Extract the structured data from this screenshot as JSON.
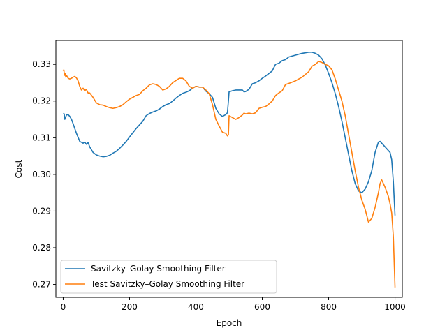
{
  "chart_data": {
    "type": "line",
    "title": "",
    "xlabel": "Epoch",
    "ylabel": "Cost",
    "xlim": [
      -22,
      1022
    ],
    "ylim": [
      0.2665,
      0.3365
    ],
    "xticks": [
      0,
      200,
      400,
      600,
      800,
      1000
    ],
    "xtick_labels": [
      "0",
      "200",
      "400",
      "600",
      "800",
      "1000"
    ],
    "yticks": [
      0.27,
      0.28,
      0.29,
      0.3,
      0.31,
      0.32,
      0.33
    ],
    "ytick_labels": [
      "0.27",
      "0.28",
      "0.29",
      "0.30",
      "0.31",
      "0.32",
      "0.33"
    ],
    "grid": false,
    "legend": {
      "placement": "lower-left"
    },
    "series": [
      {
        "name": "Savitzky–Golay Smoothing Filter",
        "color": "#1f77b4",
        "x": [
          0,
          3,
          5,
          10,
          15,
          20,
          25,
          30,
          40,
          50,
          60,
          65,
          70,
          75,
          80,
          90,
          100,
          110,
          120,
          130,
          140,
          150,
          160,
          170,
          180,
          190,
          200,
          220,
          240,
          250,
          260,
          270,
          280,
          290,
          300,
          310,
          320,
          330,
          340,
          350,
          360,
          370,
          380,
          390,
          400,
          410,
          420,
          430,
          440,
          450,
          460,
          470,
          480,
          490,
          495,
          498,
          500,
          510,
          520,
          530,
          540,
          545,
          550,
          560,
          570,
          580,
          590,
          600,
          610,
          620,
          630,
          640,
          650,
          660,
          670,
          680,
          700,
          720,
          740,
          750,
          760,
          770,
          780,
          790,
          800,
          810,
          820,
          830,
          840,
          850,
          860,
          870,
          880,
          890,
          900,
          910,
          920,
          930,
          940,
          950,
          955,
          960,
          970,
          980,
          985,
          990,
          995,
          1000
        ],
        "y": [
          0.3166,
          0.3165,
          0.315,
          0.3162,
          0.3163,
          0.3158,
          0.315,
          0.3138,
          0.3112,
          0.309,
          0.3085,
          0.3088,
          0.3082,
          0.3087,
          0.3075,
          0.306,
          0.3053,
          0.305,
          0.3048,
          0.3049,
          0.3052,
          0.3058,
          0.3063,
          0.3071,
          0.308,
          0.309,
          0.3102,
          0.3125,
          0.3145,
          0.316,
          0.3166,
          0.317,
          0.3173,
          0.3178,
          0.3185,
          0.319,
          0.3193,
          0.32,
          0.3208,
          0.3215,
          0.3221,
          0.3224,
          0.3228,
          0.3235,
          0.324,
          0.3238,
          0.3238,
          0.3227,
          0.322,
          0.321,
          0.318,
          0.3165,
          0.3158,
          0.3163,
          0.3168,
          0.32,
          0.3225,
          0.3228,
          0.323,
          0.323,
          0.323,
          0.3225,
          0.3226,
          0.3232,
          0.3247,
          0.325,
          0.3255,
          0.3262,
          0.3268,
          0.3275,
          0.3282,
          0.33,
          0.3303,
          0.331,
          0.3313,
          0.332,
          0.3325,
          0.333,
          0.3333,
          0.3333,
          0.333,
          0.3325,
          0.3315,
          0.3298,
          0.3275,
          0.325,
          0.322,
          0.3185,
          0.3145,
          0.31,
          0.3055,
          0.301,
          0.2975,
          0.2955,
          0.295,
          0.296,
          0.298,
          0.301,
          0.306,
          0.3088,
          0.309,
          0.3085,
          0.3075,
          0.3065,
          0.306,
          0.304,
          0.298,
          0.2888
        ]
      },
      {
        "name": "Test Savitzky–Golay Smoothing Filter",
        "color": "#ff7f0e",
        "x": [
          0,
          2,
          4,
          6,
          8,
          10,
          15,
          20,
          25,
          30,
          35,
          40,
          45,
          50,
          55,
          60,
          65,
          70,
          75,
          80,
          90,
          100,
          110,
          120,
          130,
          140,
          150,
          160,
          170,
          180,
          190,
          200,
          210,
          220,
          230,
          240,
          250,
          260,
          270,
          280,
          290,
          300,
          310,
          320,
          330,
          340,
          350,
          360,
          370,
          380,
          390,
          400,
          410,
          420,
          430,
          440,
          450,
          460,
          470,
          480,
          490,
          495,
          498,
          500,
          510,
          520,
          530,
          540,
          545,
          550,
          560,
          570,
          580,
          590,
          600,
          610,
          620,
          630,
          640,
          650,
          660,
          670,
          680,
          700,
          720,
          740,
          750,
          760,
          770,
          780,
          790,
          800,
          810,
          820,
          830,
          840,
          850,
          860,
          870,
          880,
          890,
          900,
          910,
          920,
          930,
          940,
          950,
          955,
          960,
          970,
          980,
          985,
          990,
          995,
          1000
        ],
        "y": [
          0.3282,
          0.3285,
          0.327,
          0.3275,
          0.3265,
          0.327,
          0.3262,
          0.326,
          0.3262,
          0.3265,
          0.3267,
          0.3263,
          0.3255,
          0.324,
          0.323,
          0.3235,
          0.3228,
          0.3232,
          0.3222,
          0.3222,
          0.321,
          0.3195,
          0.319,
          0.3189,
          0.3185,
          0.3182,
          0.318,
          0.3182,
          0.3185,
          0.319,
          0.3198,
          0.3205,
          0.321,
          0.3215,
          0.3218,
          0.3228,
          0.3235,
          0.3244,
          0.3247,
          0.3245,
          0.324,
          0.323,
          0.3233,
          0.324,
          0.325,
          0.3256,
          0.3262,
          0.3262,
          0.3255,
          0.324,
          0.3235,
          0.324,
          0.3238,
          0.3238,
          0.323,
          0.322,
          0.319,
          0.315,
          0.3132,
          0.3115,
          0.3112,
          0.3105,
          0.3108,
          0.316,
          0.3155,
          0.315,
          0.3155,
          0.3162,
          0.3167,
          0.3165,
          0.3167,
          0.3165,
          0.3168,
          0.318,
          0.3183,
          0.3185,
          0.3192,
          0.32,
          0.3215,
          0.3222,
          0.3228,
          0.3245,
          0.3248,
          0.3255,
          0.3265,
          0.328,
          0.3295,
          0.33,
          0.3308,
          0.3305,
          0.33,
          0.3296,
          0.3285,
          0.326,
          0.323,
          0.32,
          0.316,
          0.311,
          0.306,
          0.301,
          0.2965,
          0.293,
          0.2905,
          0.287,
          0.288,
          0.291,
          0.295,
          0.2975,
          0.2985,
          0.2965,
          0.294,
          0.292,
          0.2895,
          0.283,
          0.2692
        ]
      }
    ]
  }
}
